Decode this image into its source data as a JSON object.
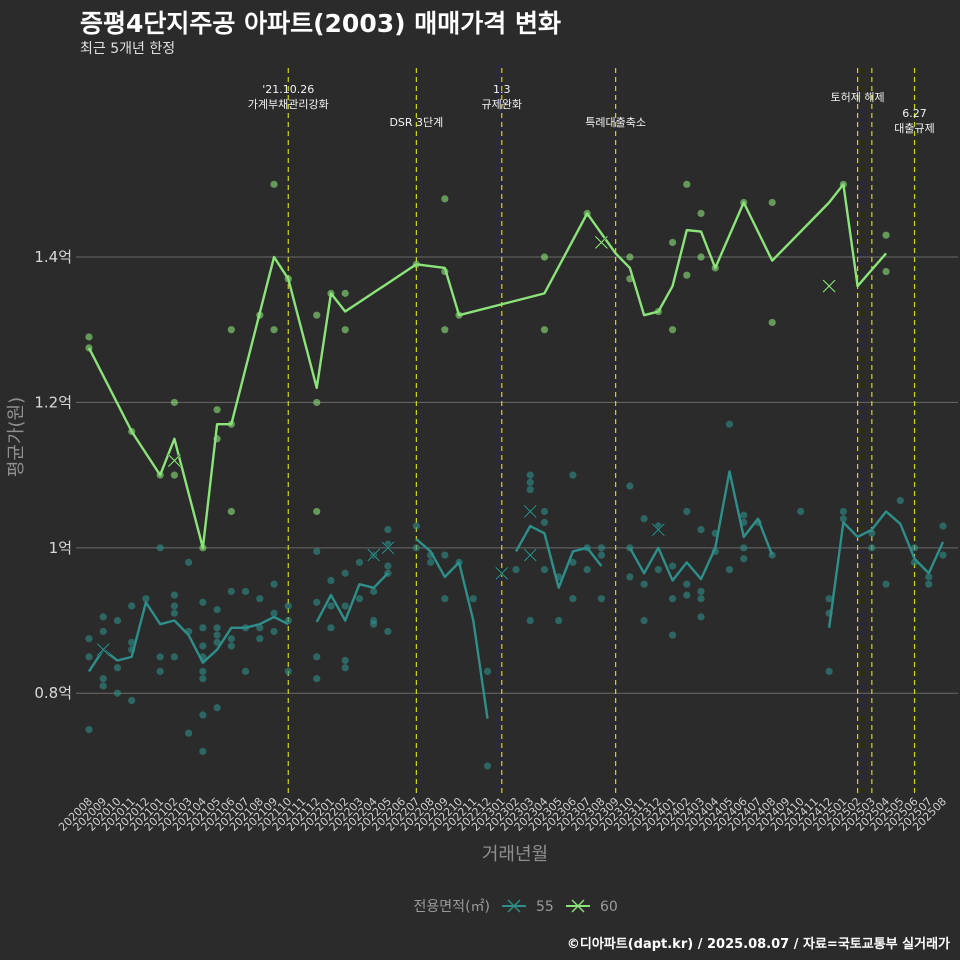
{
  "chart_data": {
    "type": "line",
    "title": "증평4단지주공 아파트(2003) 매매가격 변화",
    "subtitle": "최근 5개년 한정",
    "xlabel": "거래년월",
    "ylabel": "평균가(원)",
    "ylim": [
      0.66,
      1.66
    ],
    "ytick_values": [
      0.8,
      1.0,
      1.2,
      1.4
    ],
    "ytick_labels": [
      "0.8억",
      "1억",
      "1.2억",
      "1.4억"
    ],
    "x_categories": [
      "202008",
      "202009",
      "202010",
      "202011",
      "202012",
      "202101",
      "202102",
      "202103",
      "202104",
      "202105",
      "202106",
      "202107",
      "202108",
      "202109",
      "202110",
      "202111",
      "202112",
      "202201",
      "202202",
      "202203",
      "202204",
      "202205",
      "202206",
      "202207",
      "202208",
      "202209",
      "202210",
      "202211",
      "202212",
      "202301",
      "202302",
      "202303",
      "202304",
      "202305",
      "202306",
      "202307",
      "202308",
      "202309",
      "202310",
      "202311",
      "202312",
      "202401",
      "202402",
      "202403",
      "202404",
      "202405",
      "202406",
      "202407",
      "202408",
      "202409",
      "202410",
      "202411",
      "202412",
      "202501",
      "202502",
      "202503",
      "202504",
      "202505",
      "202506",
      "202507",
      "202508"
    ],
    "grid": true,
    "legend_title": "전용면적(㎡)",
    "legend_position": "bottom",
    "series": [
      {
        "name": "55",
        "color": "#2e8f8a",
        "line": [
          [
            0,
            0.83
          ],
          [
            1,
            0.86
          ],
          [
            2,
            0.845
          ],
          [
            3,
            0.85
          ],
          [
            4,
            0.925
          ],
          [
            5,
            0.895
          ],
          [
            6,
            0.9
          ],
          [
            7,
            0.88
          ],
          [
            8,
            0.842
          ],
          [
            9,
            0.86
          ],
          [
            10,
            0.89
          ],
          [
            11,
            0.89
          ],
          [
            12,
            0.895
          ],
          [
            13,
            0.905
          ],
          [
            14,
            0.895
          ],
          [
            null,
            null
          ],
          [
            16,
            0.898
          ],
          [
            17,
            0.935
          ],
          [
            18,
            0.9
          ],
          [
            19,
            0.95
          ],
          [
            20,
            0.945
          ],
          [
            21,
            0.965
          ],
          [
            null,
            null
          ],
          [
            23,
            1.012
          ],
          [
            24,
            0.995
          ],
          [
            25,
            0.96
          ],
          [
            26,
            0.98
          ],
          [
            27,
            0.9
          ],
          [
            28,
            0.765
          ],
          [
            null,
            null
          ],
          [
            30,
            0.995
          ],
          [
            31,
            1.03
          ],
          [
            32,
            1.02
          ],
          [
            33,
            0.945
          ],
          [
            34,
            0.995
          ],
          [
            35,
            1.0
          ],
          [
            36,
            0.975
          ],
          [
            null,
            null
          ],
          [
            38,
            1.0
          ],
          [
            39,
            0.965
          ],
          [
            40,
            1.0
          ],
          [
            41,
            0.955
          ],
          [
            42,
            0.98
          ],
          [
            43,
            0.957
          ],
          [
            44,
            1.0
          ],
          [
            45,
            1.105
          ],
          [
            46,
            1.015
          ],
          [
            47,
            1.04
          ],
          [
            48,
            0.99
          ],
          [
            null,
            null
          ],
          [
            52,
            0.89
          ],
          [
            53,
            1.035
          ],
          [
            54,
            1.015
          ],
          [
            55,
            1.025
          ],
          [
            56,
            1.05
          ],
          [
            57,
            1.033
          ],
          [
            58,
            0.985
          ],
          [
            59,
            0.965
          ],
          [
            60,
            1.008
          ]
        ],
        "points": [
          [
            0,
            0.75
          ],
          [
            0,
            0.85
          ],
          [
            0,
            0.875
          ],
          [
            1,
            0.81
          ],
          [
            1,
            0.82
          ],
          [
            1,
            0.885
          ],
          [
            1,
            0.905
          ],
          [
            2,
            0.8
          ],
          [
            2,
            0.835
          ],
          [
            2,
            0.9
          ],
          [
            3,
            0.79
          ],
          [
            3,
            0.86
          ],
          [
            3,
            0.87
          ],
          [
            3,
            0.92
          ],
          [
            4,
            0.93
          ],
          [
            5,
            0.83
          ],
          [
            5,
            0.85
          ],
          [
            5,
            1.0
          ],
          [
            6,
            0.85
          ],
          [
            6,
            0.91
          ],
          [
            6,
            0.92
          ],
          [
            6,
            0.935
          ],
          [
            7,
            0.745
          ],
          [
            7,
            0.885
          ],
          [
            7,
            0.98
          ],
          [
            8,
            0.72
          ],
          [
            8,
            0.77
          ],
          [
            8,
            0.82
          ],
          [
            8,
            0.83
          ],
          [
            8,
            0.85
          ],
          [
            8,
            0.865
          ],
          [
            8,
            0.89
          ],
          [
            8,
            0.925
          ],
          [
            9,
            0.78
          ],
          [
            9,
            0.87
          ],
          [
            9,
            0.88
          ],
          [
            9,
            0.89
          ],
          [
            9,
            0.915
          ],
          [
            10,
            0.865
          ],
          [
            10,
            0.875
          ],
          [
            10,
            0.94
          ],
          [
            11,
            0.83
          ],
          [
            11,
            0.89
          ],
          [
            11,
            0.94
          ],
          [
            12,
            0.875
          ],
          [
            12,
            0.89
          ],
          [
            12,
            0.93
          ],
          [
            13,
            0.885
          ],
          [
            13,
            0.91
          ],
          [
            13,
            0.95
          ],
          [
            14,
            0.83
          ],
          [
            14,
            0.9
          ],
          [
            14,
            0.92
          ],
          [
            16,
            0.82
          ],
          [
            16,
            0.85
          ],
          [
            16,
            0.925
          ],
          [
            16,
            0.995
          ],
          [
            17,
            0.89
          ],
          [
            17,
            0.92
          ],
          [
            17,
            0.955
          ],
          [
            18,
            0.835
          ],
          [
            18,
            0.845
          ],
          [
            18,
            0.92
          ],
          [
            18,
            0.965
          ],
          [
            19,
            0.93
          ],
          [
            19,
            0.98
          ],
          [
            20,
            0.895
          ],
          [
            20,
            0.9
          ],
          [
            20,
            0.94
          ],
          [
            20,
            0.99
          ],
          [
            21,
            0.885
          ],
          [
            21,
            0.965
          ],
          [
            21,
            0.975
          ],
          [
            21,
            1.005
          ],
          [
            21,
            1.025
          ],
          [
            23,
            1.0
          ],
          [
            23,
            1.03
          ],
          [
            24,
            0.98
          ],
          [
            24,
            0.99
          ],
          [
            25,
            0.93
          ],
          [
            25,
            0.99
          ],
          [
            26,
            0.98
          ],
          [
            27,
            0.93
          ],
          [
            28,
            0.7
          ],
          [
            28,
            0.83
          ],
          [
            30,
            0.97
          ],
          [
            31,
            0.9
          ],
          [
            31,
            1.08
          ],
          [
            31,
            1.09
          ],
          [
            31,
            1.1
          ],
          [
            32,
            0.97
          ],
          [
            32,
            1.035
          ],
          [
            32,
            1.05
          ],
          [
            33,
            0.9
          ],
          [
            33,
            0.96
          ],
          [
            34,
            0.93
          ],
          [
            34,
            0.98
          ],
          [
            34,
            1.1
          ],
          [
            35,
            0.97
          ],
          [
            35,
            1.0
          ],
          [
            36,
            0.93
          ],
          [
            36,
            0.99
          ],
          [
            36,
            1.0
          ],
          [
            38,
            0.96
          ],
          [
            38,
            1.0
          ],
          [
            38,
            1.085
          ],
          [
            39,
            0.9
          ],
          [
            39,
            0.95
          ],
          [
            39,
            1.04
          ],
          [
            40,
            0.97
          ],
          [
            40,
            1.03
          ],
          [
            41,
            0.88
          ],
          [
            41,
            0.93
          ],
          [
            41,
            0.975
          ],
          [
            42,
            0.935
          ],
          [
            42,
            0.95
          ],
          [
            42,
            1.05
          ],
          [
            43,
            0.905
          ],
          [
            43,
            0.93
          ],
          [
            43,
            0.94
          ],
          [
            43,
            1.025
          ],
          [
            44,
            0.995
          ],
          [
            44,
            1.02
          ],
          [
            45,
            0.97
          ],
          [
            45,
            1.17
          ],
          [
            46,
            0.985
          ],
          [
            46,
            1.0
          ],
          [
            46,
            1.035
          ],
          [
            46,
            1.045
          ],
          [
            47,
            1.035
          ],
          [
            48,
            0.99
          ],
          [
            50,
            1.05
          ],
          [
            52,
            0.83
          ],
          [
            52,
            0.91
          ],
          [
            52,
            0.93
          ],
          [
            53,
            1.04
          ],
          [
            53,
            1.05
          ],
          [
            55,
            1.0
          ],
          [
            55,
            1.02
          ],
          [
            56,
            0.95
          ],
          [
            57,
            1.065
          ],
          [
            58,
            0.98
          ],
          [
            58,
            1.0
          ],
          [
            59,
            0.95
          ],
          [
            59,
            0.96
          ],
          [
            60,
            0.99
          ],
          [
            60,
            1.03
          ]
        ],
        "cancelled": [
          [
            1,
            0.86
          ],
          [
            20,
            0.99
          ],
          [
            21,
            1.0
          ],
          [
            29,
            0.965
          ],
          [
            31,
            0.99
          ],
          [
            31,
            1.05
          ],
          [
            40,
            1.025
          ]
        ]
      },
      {
        "name": "60",
        "color": "#8be37a",
        "line": [
          [
            0,
            1.275
          ],
          [
            3,
            1.16
          ],
          [
            5,
            1.1
          ],
          [
            6,
            1.15
          ],
          [
            8,
            1.0
          ],
          [
            9,
            1.17
          ],
          [
            10,
            1.17
          ],
          [
            13,
            1.4
          ],
          [
            14,
            1.37
          ],
          [
            16,
            1.22
          ],
          [
            17,
            1.35
          ],
          [
            18,
            1.325
          ],
          [
            23,
            1.39
          ],
          [
            25,
            1.385
          ],
          [
            26,
            1.32
          ],
          [
            32,
            1.35
          ],
          [
            35,
            1.46
          ],
          [
            37,
            1.405
          ],
          [
            38,
            1.385
          ],
          [
            39,
            1.32
          ],
          [
            40,
            1.325
          ],
          [
            41,
            1.36
          ],
          [
            42,
            1.437
          ],
          [
            43,
            1.435
          ],
          [
            44,
            1.385
          ],
          [
            46,
            1.475
          ],
          [
            48,
            1.395
          ],
          [
            52,
            1.475
          ],
          [
            53,
            1.5
          ],
          [
            54,
            1.36
          ],
          [
            56,
            1.405
          ]
        ],
        "points": [
          [
            0,
            1.275
          ],
          [
            0,
            1.29
          ],
          [
            3,
            1.16
          ],
          [
            5,
            1.1
          ],
          [
            6,
            1.1
          ],
          [
            6,
            1.2
          ],
          [
            8,
            1.0
          ],
          [
            9,
            1.15
          ],
          [
            9,
            1.19
          ],
          [
            10,
            1.17
          ],
          [
            10,
            1.3
          ],
          [
            10,
            1.05
          ],
          [
            12,
            1.32
          ],
          [
            13,
            1.3
          ],
          [
            13,
            1.5
          ],
          [
            14,
            1.37
          ],
          [
            16,
            1.32
          ],
          [
            16,
            1.2
          ],
          [
            16,
            1.05
          ],
          [
            17,
            1.35
          ],
          [
            18,
            1.35
          ],
          [
            18,
            1.3
          ],
          [
            23,
            1.39
          ],
          [
            25,
            1.38
          ],
          [
            25,
            1.3
          ],
          [
            25,
            1.48
          ],
          [
            26,
            1.32
          ],
          [
            32,
            1.4
          ],
          [
            32,
            1.3
          ],
          [
            35,
            1.46
          ],
          [
            38,
            1.4
          ],
          [
            38,
            1.37
          ],
          [
            40,
            1.325
          ],
          [
            41,
            1.3
          ],
          [
            41,
            1.42
          ],
          [
            42,
            1.375
          ],
          [
            42,
            1.5
          ],
          [
            43,
            1.46
          ],
          [
            43,
            1.4
          ],
          [
            44,
            1.385
          ],
          [
            46,
            1.475
          ],
          [
            48,
            1.475
          ],
          [
            48,
            1.31
          ],
          [
            53,
            1.5
          ],
          [
            56,
            1.43
          ],
          [
            56,
            1.38
          ]
        ],
        "cancelled": [
          [
            6,
            1.12
          ],
          [
            36,
            1.42
          ],
          [
            52,
            1.36
          ]
        ]
      }
    ],
    "annotations": [
      {
        "x": 14,
        "lines": [
          "'21.10.26",
          "가계부채관리강화"
        ],
        "row": 0
      },
      {
        "x": 23,
        "lines": [
          "DSR 3단계"
        ],
        "row": 2
      },
      {
        "x": 29,
        "lines": [
          "1.3",
          "규제완화"
        ],
        "row": 0
      },
      {
        "x": 37,
        "lines": [
          "특례대출축소"
        ],
        "row": 2
      },
      {
        "x": 54,
        "lines": [
          "토허제 해제"
        ],
        "row": 1
      },
      {
        "x": 55,
        "lines": [],
        "row": 0
      },
      {
        "x": 58,
        "lines": [
          "6.27",
          "대출규제"
        ],
        "row": 3
      }
    ]
  },
  "footer": "©디아파트(dapt.kr) / 2025.08.07 / 자료=국토교통부 실거래가"
}
